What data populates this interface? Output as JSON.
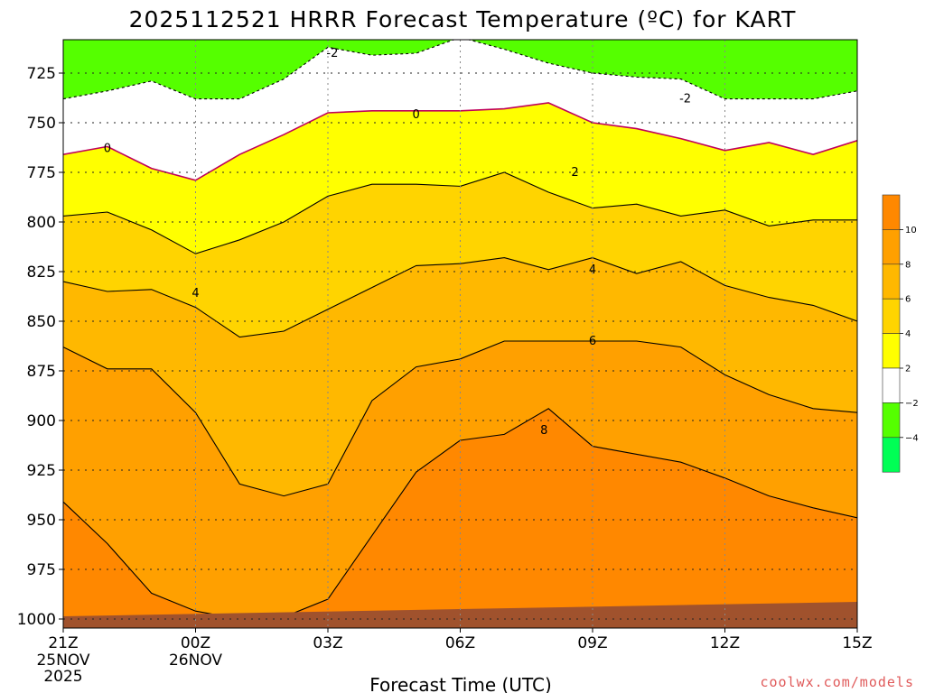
{
  "chart_data": {
    "type": "contour",
    "title": "2025112521 HRRR Forecast Temperature (ºC) for KART",
    "xlabel": "Forecast Time (UTC)",
    "credit": "coolwx.com/models",
    "x_ticks": [
      "21Z",
      "00Z",
      "03Z",
      "06Z",
      "09Z",
      "12Z",
      "15Z"
    ],
    "x_sublabels": [
      {
        "tick": "21Z",
        "lines": [
          "25NOV",
          "2025"
        ]
      },
      {
        "tick": "00Z",
        "lines": [
          "26NOV"
        ]
      }
    ],
    "y_ticks": [
      725,
      750,
      775,
      800,
      825,
      850,
      875,
      900,
      925,
      950,
      975,
      1000
    ],
    "ylim": [
      1000,
      707
    ],
    "x_hours": [
      0,
      1,
      2,
      3,
      4,
      5,
      6,
      7,
      8,
      9,
      10,
      11,
      12,
      13,
      14,
      15,
      16,
      17,
      18
    ],
    "grid": "dotted",
    "colorbar": {
      "ticks": [
        "10",
        "8",
        "6",
        "4",
        "2",
        "−2",
        "−4"
      ],
      "bands": [
        {
          "label": "≥10",
          "color": "#ff8800"
        },
        {
          "label": "8 to 10",
          "color": "#ffa000"
        },
        {
          "label": "6 to 8",
          "color": "#ffb800"
        },
        {
          "label": "4 to 6",
          "color": "#ffd400"
        },
        {
          "label": "2 to 4",
          "color": "#ffff00"
        },
        {
          "label": "-2 to 2",
          "color": "#ffffff"
        },
        {
          "label": "-4 to -2",
          "color": "#55ff00"
        },
        {
          "label": "< -4",
          "color": "#00ff55"
        }
      ]
    },
    "isotherms_hPa": [
      {
        "level": "-2",
        "pressure": [
          738,
          734,
          729,
          738,
          738,
          728,
          712,
          716,
          715,
          707,
          713,
          720,
          725,
          727,
          728,
          738,
          738,
          738,
          734
        ]
      },
      {
        "level": "0",
        "pressure": [
          766,
          762,
          773,
          779,
          766,
          756,
          745,
          744,
          744,
          744,
          743,
          740,
          750,
          753,
          758,
          764,
          760,
          766,
          759
        ]
      },
      {
        "level": "2",
        "pressure": [
          797,
          795,
          804,
          816,
          809,
          800,
          787,
          781,
          781,
          782,
          775,
          785,
          793,
          791,
          797,
          794,
          802,
          799,
          799
        ]
      },
      {
        "level": "4",
        "pressure": [
          830,
          835,
          834,
          843,
          858,
          855,
          844,
          833,
          822,
          821,
          818,
          824,
          818,
          826,
          820,
          832,
          838,
          842,
          850
        ]
      },
      {
        "level": "6",
        "pressure": [
          863,
          874,
          874,
          896,
          932,
          938,
          932,
          890,
          873,
          869,
          860,
          860,
          860,
          860,
          863,
          877,
          887,
          894,
          896
        ]
      },
      {
        "level": "8",
        "pressure": [
          941,
          962,
          987,
          996,
          1000,
          999,
          990,
          958,
          926,
          910,
          907,
          894,
          913,
          917,
          921,
          929,
          938,
          944,
          949
        ]
      }
    ],
    "contour_labels": [
      {
        "text": "-2",
        "hour": 6.1,
        "p": 715
      },
      {
        "text": "-2",
        "hour": 14.1,
        "p": 738
      },
      {
        "text": "0",
        "hour": 1.0,
        "p": 763
      },
      {
        "text": "0",
        "hour": 8.0,
        "p": 746
      },
      {
        "text": "2",
        "hour": 11.6,
        "p": 775
      },
      {
        "text": "4",
        "hour": 3.0,
        "p": 836
      },
      {
        "text": "4",
        "hour": 12.0,
        "p": 824
      },
      {
        "text": "6",
        "hour": 12.0,
        "p": 860
      },
      {
        "text": "8",
        "hour": 10.9,
        "p": 905
      }
    ]
  }
}
